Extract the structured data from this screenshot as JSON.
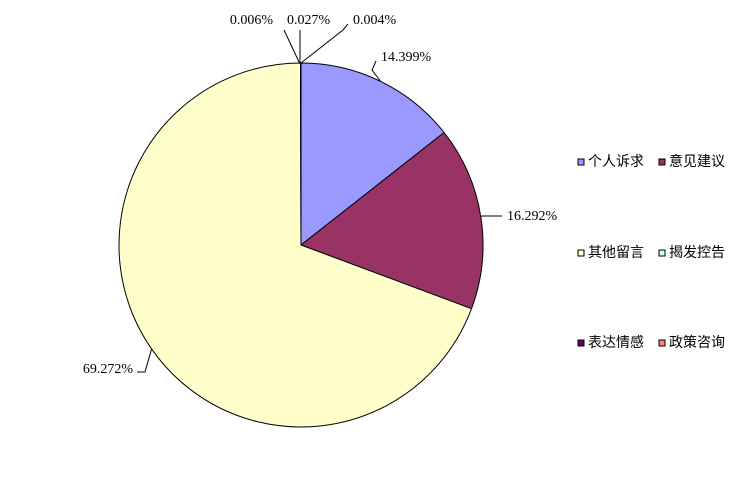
{
  "chart_data": {
    "type": "pie",
    "title": "",
    "slices": [
      {
        "name": "个人诉求",
        "value": 14.399,
        "label": "14.399%",
        "color": "#9999ff"
      },
      {
        "name": "意见建议",
        "value": 16.292,
        "label": "16.292%",
        "color": "#993366"
      },
      {
        "name": "其他留言",
        "value": 69.272,
        "label": "69.272%",
        "color": "#ffffcc"
      },
      {
        "name": "揭发控告",
        "value": 0.006,
        "label": "0.006%",
        "color": "#ccffff"
      },
      {
        "name": "表达情感",
        "value": 0.027,
        "label": "0.027%",
        "color": "#660066"
      },
      {
        "name": "政策咨询",
        "value": 0.004,
        "label": "0.004%",
        "color": "#ff8080"
      }
    ],
    "legend_position": "right",
    "legend_order": [
      "个人诉求",
      "意见建议",
      "其他留言",
      "揭发控告",
      "表达情感",
      "政策咨询"
    ]
  }
}
